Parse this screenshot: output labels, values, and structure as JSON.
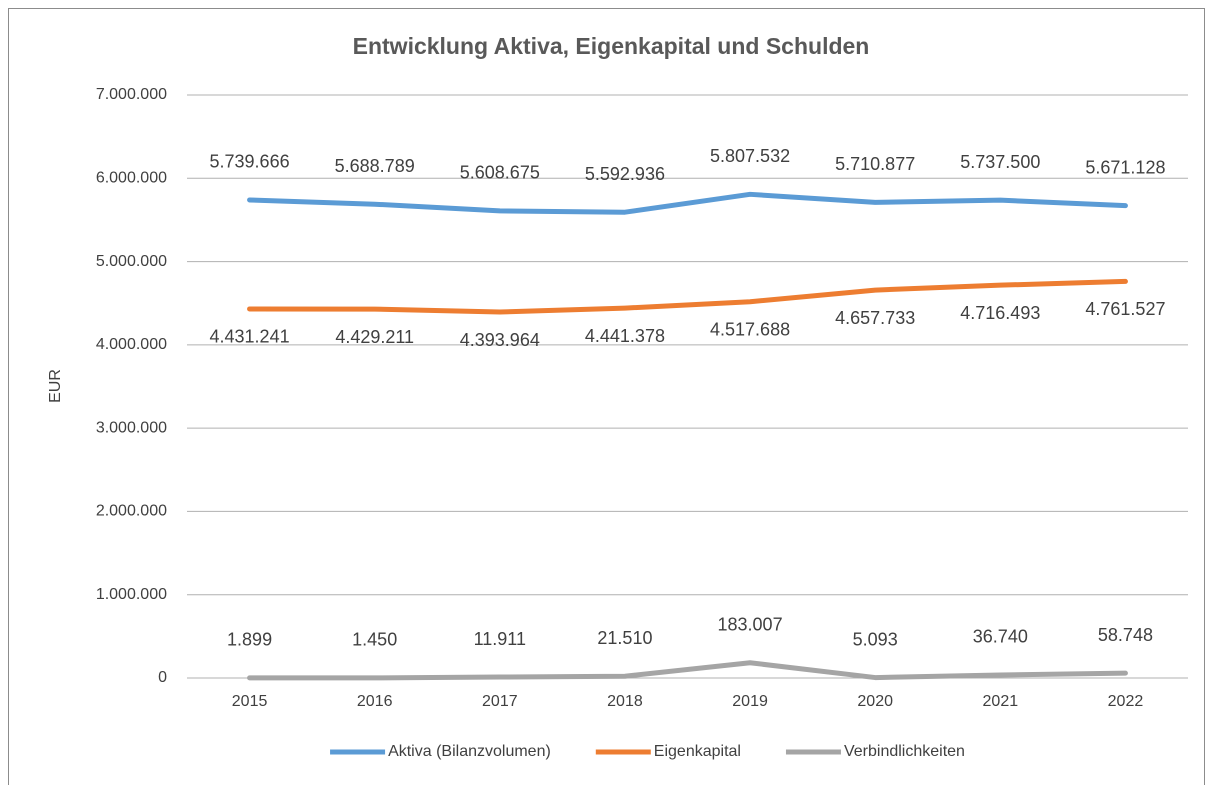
{
  "chart_data": {
    "type": "line",
    "title": "Entwicklung Aktiva, Eigenkapital und Schulden",
    "y_label": "EUR",
    "categories": [
      "2015",
      "2016",
      "2017",
      "2018",
      "2019",
      "2020",
      "2021",
      "2022"
    ],
    "series": [
      {
        "name": "Aktiva (Bilanzvolumen)",
        "color": "#5b9bd5",
        "label_position": "above",
        "values": [
          5739666,
          5688789,
          5608675,
          5592936,
          5807532,
          5710877,
          5737500,
          5671128
        ],
        "value_labels": [
          "5.739.666",
          "5.688.789",
          "5.608.675",
          "5.592.936",
          "5.807.532",
          "5.710.877",
          "5.737.500",
          "5.671.128"
        ]
      },
      {
        "name": "Eigenkapital",
        "color": "#ed7d31",
        "label_position": "below",
        "values": [
          4431241,
          4429211,
          4393964,
          4441378,
          4517688,
          4657733,
          4716493,
          4761527
        ],
        "value_labels": [
          "4.431.241",
          "4.429.211",
          "4.393.964",
          "4.441.378",
          "4.517.688",
          "4.657.733",
          "4.716.493",
          "4.761.527"
        ]
      },
      {
        "name": "Verbindlichkeiten",
        "color": "#a5a5a5",
        "label_position": "above",
        "values": [
          1899,
          1450,
          11911,
          21510,
          183007,
          5093,
          36740,
          58748
        ],
        "value_labels": [
          "1.899",
          "1.450",
          "11.911",
          "21.510",
          "183.007",
          "5.093",
          "36.740",
          "58.748"
        ]
      }
    ],
    "ylim": [
      0,
      7000000
    ],
    "yticks": [
      0,
      {
        "value": 1000000,
        "label": "1.000.000"
      },
      {
        "value": 2000000,
        "label": "2.000.000"
      },
      {
        "value": 3000000,
        "label": "3.000.000"
      },
      {
        "value": 4000000,
        "label": "4.000.000"
      },
      {
        "value": 5000000,
        "label": "5.000.000"
      },
      {
        "value": 6000000,
        "label": "6.000.000"
      },
      {
        "value": 7000000,
        "label": "7.000.000"
      }
    ],
    "grid": true,
    "legend": "bottom"
  }
}
